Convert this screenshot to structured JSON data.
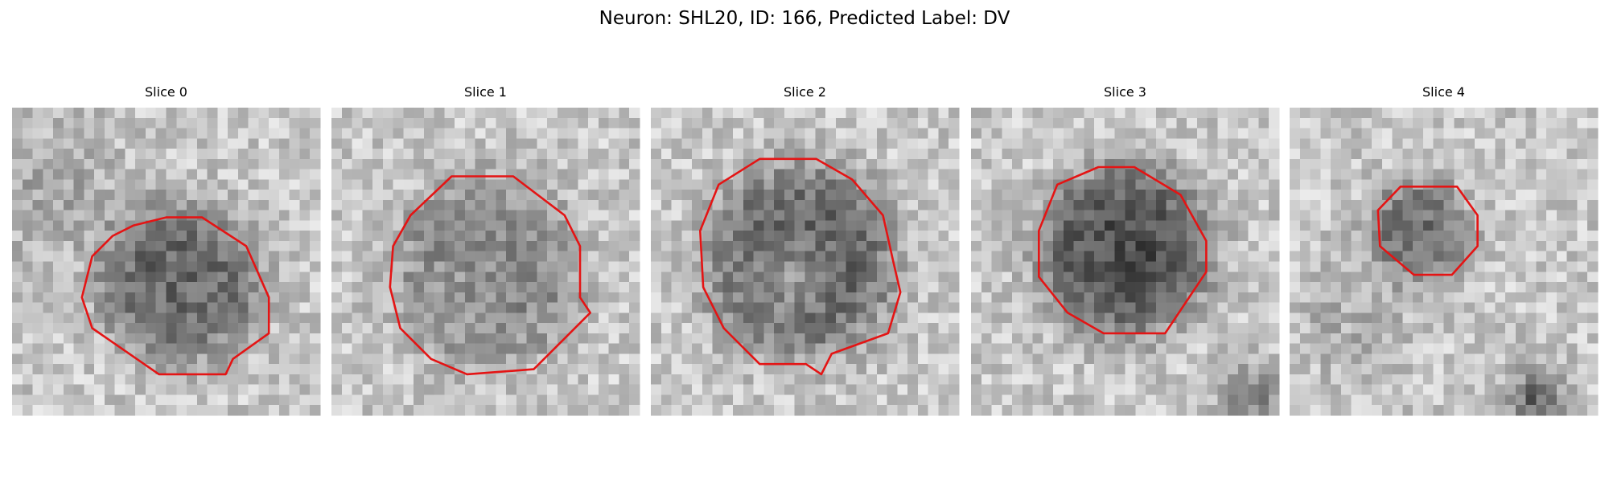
{
  "title": "Neuron: SHL20, ID: 166, Predicted Label: DV",
  "panels": [
    {
      "title": "Slice 0"
    },
    {
      "title": "Slice 1"
    },
    {
      "title": "Slice 2"
    },
    {
      "title": "Slice 3"
    },
    {
      "title": "Slice 4"
    }
  ]
}
